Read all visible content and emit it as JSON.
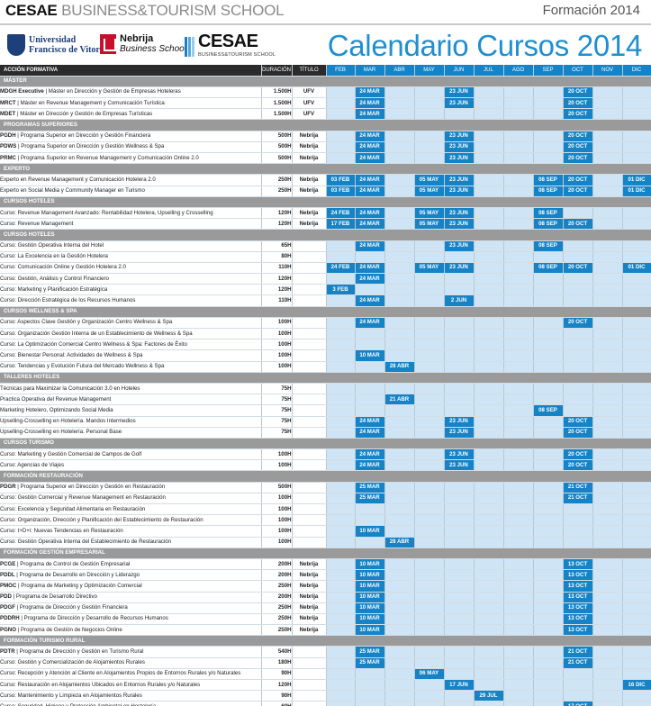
{
  "header": {
    "brand_bold": "CESAE",
    "brand_rest": " BUSINESS&TOURISM SCHOOL",
    "year_label": "Formación 2014",
    "main_title": "Calendario Cursos 2014"
  },
  "logos": {
    "ufv_line1": "Universidad",
    "ufv_line2": "Francisco de Vitoria",
    "nebrija_line1": "Nebrija",
    "nebrija_line2": "Business School",
    "cesae_line1": "CESAE",
    "cesae_line2": "BUSINESS&TOURISM SCHOOL"
  },
  "table": {
    "col_accion": "ACCIÓN FORMATIVA",
    "col_duracion": "DURACIÓN",
    "col_titulo": "TÍTULO",
    "months": [
      "FEB",
      "MAR",
      "ABR",
      "MAY",
      "JUN",
      "JUL",
      "AGO",
      "SEP",
      "OCT",
      "NOV",
      "DIC"
    ],
    "rows": [
      {
        "section": "MÁSTER"
      },
      {
        "code": "MDGH Executive",
        "name": "Máster en Dirección y Gestión de Empresas Hoteleras",
        "dur": "1.500H",
        "tit": "UFV",
        "dates": {
          "1": "24 MAR",
          "4": "23 JUN",
          "8": "20 OCT"
        }
      },
      {
        "code": "MRCT",
        "name": "Máster en Revenue Management y Comunicación Turística",
        "dur": "1.500H",
        "tit": "UFV",
        "dates": {
          "1": "24 MAR",
          "4": "23 JUN",
          "8": "20 OCT"
        }
      },
      {
        "code": "MDET",
        "name": "Máster en Dirección y Gestión de Empresas Turísticas",
        "dur": "1.500H",
        "tit": "UFV",
        "dates": {
          "1": "24 MAR",
          "8": "20 OCT"
        }
      },
      {
        "section": "PROGRAMAS SUPERIORES"
      },
      {
        "code": "PGDH",
        "name": "Programa Superior en Dirección y Gestión Financiera",
        "dur": "500H",
        "tit": "Nebrija",
        "dates": {
          "1": "24 MAR",
          "4": "23 JUN",
          "8": "20 OCT"
        }
      },
      {
        "code": "PDWS",
        "name": "Programa Superior en Dirección y Gestión Wellness & Spa",
        "dur": "500H",
        "tit": "Nebrija",
        "dates": {
          "1": "24 MAR",
          "4": "23 JUN",
          "8": "20 OCT"
        }
      },
      {
        "code": "PRMC",
        "name": "Programa Superior en Revenue Management y Comunicación Online 2.0",
        "dur": "500H",
        "tit": "Nebrija",
        "dates": {
          "1": "24 MAR",
          "4": "23 JUN",
          "8": "20 OCT"
        }
      },
      {
        "section": "EXPERTO"
      },
      {
        "code": "",
        "name": "Experto en Revenue Management y Comunicación Hotelera 2.0",
        "dur": "250H",
        "tit": "Nebrija",
        "dates": {
          "0": "03 FEB",
          "1": "24 MAR",
          "3": "05 MAY",
          "4": "23 JUN",
          "7": "08 SEP",
          "8": "20 OCT",
          "10": "01 DIC"
        }
      },
      {
        "code": "",
        "name": "Experto en Social Media y Community Manager en Turismo",
        "dur": "250H",
        "tit": "Nebrija",
        "dates": {
          "0": "03 FEB",
          "1": "24 MAR",
          "3": "05 MAY",
          "4": "23 JUN",
          "7": "08 SEP",
          "8": "20 OCT",
          "10": "01 DIC"
        }
      },
      {
        "section": "CURSOS HOTELES"
      },
      {
        "code": "",
        "name": "Curso: Revenue Management Avanzado: Rentabilidad Hotelera, Upselling y Crosselling",
        "dur": "120H",
        "tit": "Nebrija",
        "dates": {
          "0": "24 FEB",
          "1": "24 MAR",
          "3": "05 MAY",
          "4": "23 JUN",
          "7": "08 SEP"
        }
      },
      {
        "code": "",
        "name": "Curso: Revenue Management",
        "dur": "120H",
        "tit": "Nebrija",
        "dates": {
          "0": "17 FEB",
          "1": "24 MAR",
          "3": "05 MAY",
          "4": "23 JUN",
          "7": "08 SEP",
          "8": "20 OCT"
        }
      },
      {
        "section": "CURSOS HOTELES"
      },
      {
        "code": "",
        "name": "Curso: Gestión Operativa Interna del Hotel",
        "dur": "65H",
        "tit": "",
        "dates": {
          "1": "24 MAR",
          "4": "23 JUN",
          "7": "08 SEP"
        }
      },
      {
        "code": "",
        "name": "Curso: La Excelencia en la Gestión Hotelera",
        "dur": "80H",
        "tit": "",
        "dates": {}
      },
      {
        "code": "",
        "name": "Curso: Comunicación Online y Gestión Hotelera 2.0",
        "dur": "110H",
        "tit": "",
        "dates": {
          "0": "24 FEB",
          "1": "24 MAR",
          "3": "05 MAY",
          "4": "23 JUN",
          "7": "08 SEP",
          "8": "20 OCT",
          "10": "01 DIC"
        }
      },
      {
        "code": "",
        "name": "Curso: Gestión, Análisis y Control Financiero",
        "dur": "120H",
        "tit": "",
        "dates": {
          "1": "24 MAR"
        }
      },
      {
        "code": "",
        "name": "Curso: Marketing y Planificación Estratégica",
        "dur": "120H",
        "tit": "",
        "dates": {
          "0": "3 FEB"
        }
      },
      {
        "code": "",
        "name": "Curso: Dirección Estratégica de los Recursos Humanos",
        "dur": "110H",
        "tit": "",
        "dates": {
          "1": "24 MAR",
          "4": "2 JUN"
        }
      },
      {
        "section": "CURSOS WELLNESS & SPA"
      },
      {
        "code": "",
        "name": "Curso: Aspectos Clave Gestión y Organización Centro Wellness & Spa",
        "dur": "100H",
        "tit": "",
        "dates": {
          "1": "24 MAR",
          "8": "20 OCT"
        }
      },
      {
        "code": "",
        "name": "Curso: Organización Gestión Interna de un Establecimiento de Wellness & Spa",
        "dur": "100H",
        "tit": "",
        "dates": {}
      },
      {
        "code": "",
        "name": "Curso: La Optimización Comercial Centro Wellness & Spa: Factores de Éxito",
        "dur": "100H",
        "tit": "",
        "dates": {}
      },
      {
        "code": "",
        "name": "Curso: Bienestar Personal: Actividades de Wellness & Spa",
        "dur": "100H",
        "tit": "",
        "dates": {
          "1": "10 MAR"
        }
      },
      {
        "code": "",
        "name": "Curso: Tendencias y Evolución Futura del Mercado Wellness & Spa",
        "dur": "100H",
        "tit": "",
        "dates": {
          "2": "28 ABR"
        }
      },
      {
        "section": "TALLERES HOTELES"
      },
      {
        "code": "",
        "name": "Técnicas para Maximizar la Comunicación 3.0 en Hoteles",
        "dur": "75H",
        "tit": "",
        "dates": {}
      },
      {
        "code": "",
        "name": "Practica Operativa del Revenue Management",
        "dur": "75H",
        "tit": "",
        "dates": {
          "2": "21 ABR"
        }
      },
      {
        "code": "",
        "name": "Marketing Hotelero, Optimizando Social Media",
        "dur": "75H",
        "tit": "",
        "dates": {
          "7": "08 SEP"
        }
      },
      {
        "code": "",
        "name": "Upselling-Crosselling en Hotelería. Mandos Intermedios",
        "dur": "75H",
        "tit": "",
        "dates": {
          "1": "24 MAR",
          "4": "23 JUN",
          "8": "20 OCT"
        }
      },
      {
        "code": "",
        "name": "Upselling-Crosselling en Hotelería. Personal Base",
        "dur": "75H",
        "tit": "",
        "dates": {
          "1": "24 MAR",
          "4": "23 JUN",
          "8": "20 OCT"
        }
      },
      {
        "section": "CURSOS TURISMO"
      },
      {
        "code": "",
        "name": "Curso: Marketing y Gestión Comercial de Campos de Golf",
        "dur": "100H",
        "tit": "",
        "dates": {
          "1": "24 MAR",
          "4": "23 JUN",
          "8": "20 OCT"
        }
      },
      {
        "code": "",
        "name": "Curso: Agencias de Viajes",
        "dur": "100H",
        "tit": "",
        "dates": {
          "1": "24 MAR",
          "4": "23 JUN",
          "8": "20 OCT"
        }
      },
      {
        "section": "FORMACIÓN RESTAURACIÓN"
      },
      {
        "code": "PDGR",
        "name": "Programa Superior en Dirección y Gestión en Restauración",
        "dur": "500H",
        "tit": "",
        "dates": {
          "1": "25 MAR",
          "8": "21 OCT"
        }
      },
      {
        "code": "",
        "name": "Curso: Gestión Comercial y Revenue Management en Restauración",
        "dur": "100H",
        "tit": "",
        "dates": {
          "1": "25 MAR",
          "8": "21 OCT"
        }
      },
      {
        "code": "",
        "name": "Curso: Excelencia y Seguridad Alimentaria en Restauración",
        "dur": "100H",
        "tit": "",
        "dates": {}
      },
      {
        "code": "",
        "name": "Curso: Organización, Dirección y Planificación del Establecimiento de Restauración",
        "dur": "100H",
        "tit": "",
        "dates": {}
      },
      {
        "code": "",
        "name": "Curso: I+D+i: Nuevas Tendencias en Restauración",
        "dur": "100H",
        "tit": "",
        "dates": {
          "1": "10 MAR"
        }
      },
      {
        "code": "",
        "name": "Curso: Gestión Operativa Interna del Establecimiento de Restauración",
        "dur": "100H",
        "tit": "",
        "dates": {
          "2": "28 ABR"
        }
      },
      {
        "section": "FORMACIÓN GESTIÓN EMPRESARIAL"
      },
      {
        "code": "PCGE",
        "name": "Programa de Control de Gestión Empresarial",
        "dur": "200H",
        "tit": "Nebrija",
        "dates": {
          "1": "10 MAR",
          "8": "13 OCT"
        }
      },
      {
        "code": "PDDL",
        "name": "Programa de Desarrollo en Dirección y Liderazgo",
        "dur": "200H",
        "tit": "Nebrija",
        "dates": {
          "1": "10 MAR",
          "8": "13 OCT"
        }
      },
      {
        "code": "PMOC",
        "name": "Programa de Marketing y Optimización Comercial",
        "dur": "250H",
        "tit": "Nebrija",
        "dates": {
          "1": "10 MAR",
          "8": "13 OCT"
        }
      },
      {
        "code": "PDD",
        "name": "Programa de Desarrollo Directivo",
        "dur": "200H",
        "tit": "Nebrija",
        "dates": {
          "1": "10 MAR",
          "8": "13 OCT"
        }
      },
      {
        "code": "PDGF",
        "name": "Programa de Dirección y Gestión Financiera",
        "dur": "250H",
        "tit": "Nebrija",
        "dates": {
          "1": "10 MAR",
          "8": "13 OCT"
        }
      },
      {
        "code": "PDDRH",
        "name": "Programa de Dirección y Desarrollo de Recursos Humanos",
        "dur": "250H",
        "tit": "Nebrija",
        "dates": {
          "1": "10 MAR",
          "8": "13 OCT"
        }
      },
      {
        "code": "PGNO",
        "name": "Programa de Gestión de Negocios Online",
        "dur": "250H",
        "tit": "Nebrija",
        "dates": {
          "1": "10 MAR",
          "8": "13 OCT"
        }
      },
      {
        "section": "FORMACIÓN TURISMO RURAL"
      },
      {
        "code": "PDTR",
        "name": "Programa de Dirección y Gestión en Turismo Rural",
        "dur": "540H",
        "tit": "",
        "dates": {
          "1": "25 MAR",
          "8": "21 OCT"
        }
      },
      {
        "code": "",
        "name": "Curso: Gestión y Comercialización de Alojamientos Rurales",
        "dur": "180H",
        "tit": "",
        "dates": {
          "1": "25 MAR",
          "8": "21 OCT"
        }
      },
      {
        "code": "",
        "name": "Curso: Recepción y Atención al Cliente en Alojamientos Propios de Entornos Rurales y/o Naturales",
        "dur": "90H",
        "tit": "",
        "dates": {
          "3": "06 MAY"
        }
      },
      {
        "code": "",
        "name": "Curso: Restauración en Alojamientos Ubicados en Entornos Rurales y/o Naturales",
        "dur": "120H",
        "tit": "",
        "dates": {
          "4": "17 JUN",
          "10": "16 DIC"
        }
      },
      {
        "code": "",
        "name": "Curso: Mantenimiento y Limpieza en Alojamientos Rurales",
        "dur": "90H",
        "tit": "",
        "dates": {
          "5": "29 JUL"
        }
      },
      {
        "code": "",
        "name": "Curso: Seguridad, Higiene y Protección Ambiental en Hostelería",
        "dur": "60H",
        "tit": "",
        "dates": {
          "8": "17 OCT"
        }
      }
    ]
  }
}
